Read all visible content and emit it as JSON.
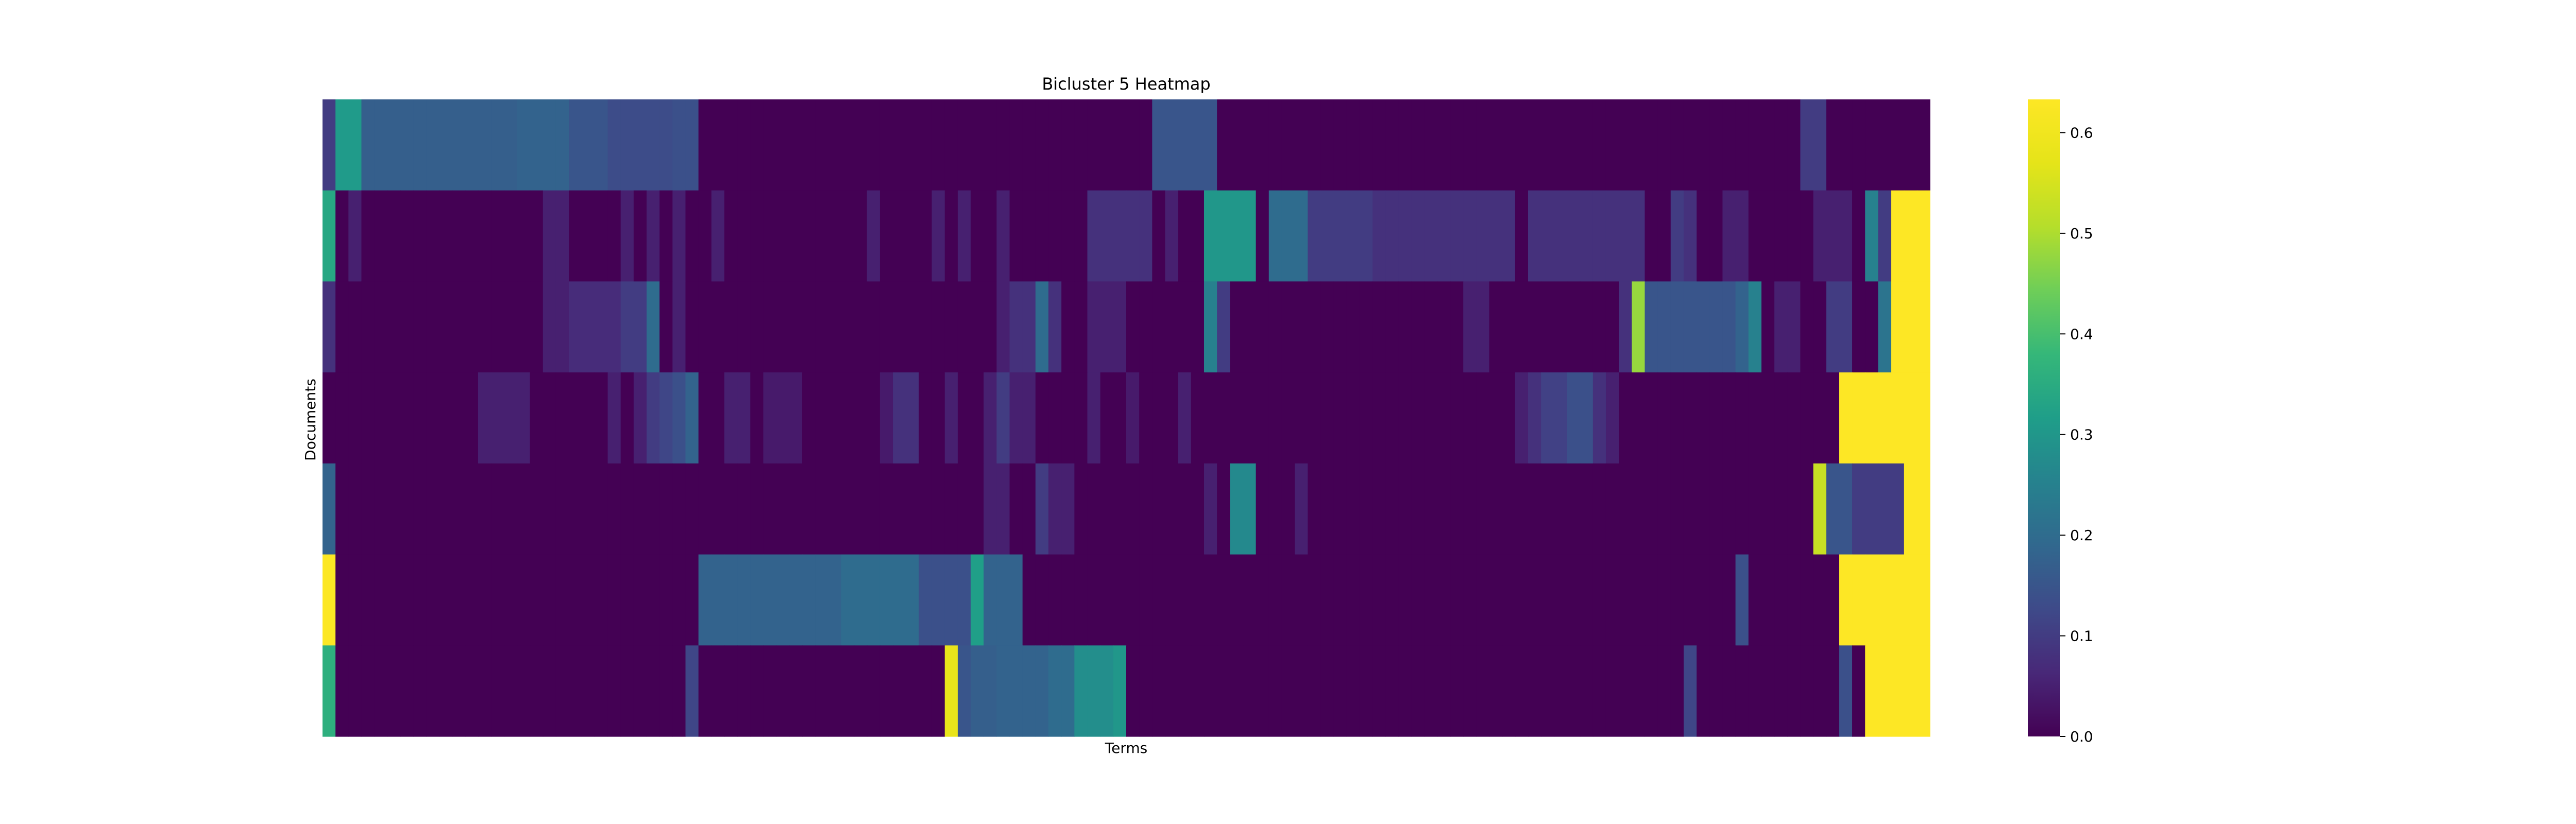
{
  "chart_data": {
    "type": "heatmap",
    "title": "Bicluster 5 Heatmap",
    "xlabel": "Terms",
    "ylabel": "Documents",
    "colormap": "viridis",
    "colorbar": {
      "min": 0.0,
      "max": 0.633,
      "ticks": [
        0.0,
        0.1,
        0.2,
        0.3,
        0.4,
        0.5,
        0.6
      ],
      "tick_labels": [
        "0.0",
        "0.1",
        "0.2",
        "0.3",
        "0.4",
        "0.5",
        "0.6"
      ]
    },
    "n_rows": 7,
    "n_cols": 117,
    "rows": [
      [
        0.1,
        0.31,
        0.31,
        0.17,
        0.17,
        0.17,
        0.17,
        0.17,
        0.17,
        0.17,
        0.17,
        0.17,
        0.17,
        0.17,
        0.17,
        0.18,
        0.18,
        0.18,
        0.18,
        0.15,
        0.15,
        0.15,
        0.13,
        0.13,
        0.13,
        0.13,
        0.13,
        0.14,
        0.14,
        0.0,
        0.0,
        0.0,
        0.0,
        0.0,
        0.0,
        0.0,
        0.0,
        0.0,
        0.0,
        0.0,
        0.0,
        0.0,
        0.0,
        0.0,
        0.0,
        0.0,
        0.0,
        0.0,
        0.0,
        0.0,
        0.0,
        0.0,
        0.0,
        0.0,
        0.0,
        0.0,
        0.0,
        0.0,
        0.0,
        0.0,
        0.0,
        0.0,
        0.0,
        0.0,
        0.15,
        0.15,
        0.15,
        0.15,
        0.15,
        0.0,
        0.0,
        0.0,
        0.0,
        0.0,
        0.0,
        0.0,
        0.0,
        0.0,
        0.0,
        0.0,
        0.0,
        0.0,
        0.0,
        0.0,
        0.0,
        0.0,
        0.0,
        0.0,
        0.0,
        0.0,
        0.0,
        0.0,
        0.0,
        0.0,
        0.0,
        0.0,
        0.0,
        0.0,
        0.0,
        0.0,
        0.0,
        0.0,
        0.0,
        0.0,
        0.0,
        0.0,
        0.0,
        0.0,
        0.0,
        0.0,
        0.0,
        0.0,
        0.0,
        0.0,
        0.1,
        0.1,
        0.0,
        0.0,
        0.0,
        0.0,
        0.0,
        0.0,
        0.0,
        0.0
      ],
      [
        0.34,
        0.0,
        0.05,
        0.0,
        0.0,
        0.0,
        0.0,
        0.0,
        0.0,
        0.0,
        0.0,
        0.0,
        0.0,
        0.0,
        0.0,
        0.0,
        0.0,
        0.05,
        0.05,
        0.0,
        0.0,
        0.0,
        0.0,
        0.05,
        0.0,
        0.05,
        0.0,
        0.05,
        0.0,
        0.0,
        0.05,
        0.0,
        0.0,
        0.0,
        0.0,
        0.0,
        0.0,
        0.0,
        0.0,
        0.0,
        0.0,
        0.0,
        0.05,
        0.0,
        0.0,
        0.0,
        0.0,
        0.05,
        0.0,
        0.05,
        0.0,
        0.0,
        0.05,
        0.0,
        0.0,
        0.0,
        0.0,
        0.0,
        0.0,
        0.08,
        0.08,
        0.08,
        0.08,
        0.08,
        0.0,
        0.05,
        0.0,
        0.0,
        0.3,
        0.3,
        0.3,
        0.3,
        0.0,
        0.2,
        0.2,
        0.2,
        0.1,
        0.1,
        0.1,
        0.1,
        0.1,
        0.08,
        0.08,
        0.08,
        0.08,
        0.08,
        0.08,
        0.08,
        0.08,
        0.08,
        0.08,
        0.08,
        0.0,
        0.08,
        0.08,
        0.08,
        0.08,
        0.08,
        0.08,
        0.08,
        0.08,
        0.08,
        0.0,
        0.0,
        0.1,
        0.08,
        0.0,
        0.0,
        0.05,
        0.05,
        0.0,
        0.0,
        0.0,
        0.0,
        0.0,
        0.05,
        0.05,
        0.05,
        0.0,
        0.25,
        0.1
      ],
      [
        0.08,
        0.0,
        0.0,
        0.0,
        0.0,
        0.0,
        0.0,
        0.0,
        0.0,
        0.0,
        0.0,
        0.0,
        0.0,
        0.0,
        0.0,
        0.0,
        0.0,
        0.05,
        0.05,
        0.07,
        0.07,
        0.07,
        0.07,
        0.1,
        0.1,
        0.2,
        0.0,
        0.05,
        0.0,
        0.0,
        0.0,
        0.0,
        0.0,
        0.0,
        0.0,
        0.0,
        0.0,
        0.0,
        0.0,
        0.0,
        0.0,
        0.0,
        0.0,
        0.0,
        0.0,
        0.0,
        0.0,
        0.0,
        0.0,
        0.0,
        0.0,
        0.0,
        0.05,
        0.08,
        0.08,
        0.2,
        0.08,
        0.0,
        0.0,
        0.05,
        0.05,
        0.05,
        0.0,
        0.0,
        0.0,
        0.0,
        0.0,
        0.0,
        0.25,
        0.1,
        0.0,
        0.0,
        0.0,
        0.0,
        0.0,
        0.0,
        0.0,
        0.0,
        0.0,
        0.0,
        0.0,
        0.0,
        0.0,
        0.0,
        0.0,
        0.0,
        0.0,
        0.0,
        0.05,
        0.05,
        0.0,
        0.0,
        0.0,
        0.0,
        0.0,
        0.0,
        0.0,
        0.0,
        0.0,
        0.0,
        0.08,
        0.48,
        0.15,
        0.15,
        0.15,
        0.15,
        0.15,
        0.15,
        0.15,
        0.18,
        0.25,
        0.0,
        0.05,
        0.05,
        0.0,
        0.0,
        0.1,
        0.1,
        0.0,
        0.0,
        0.22
      ],
      [
        0.0,
        0.0,
        0.0,
        0.0,
        0.0,
        0.0,
        0.0,
        0.0,
        0.0,
        0.0,
        0.0,
        0.0,
        0.05,
        0.05,
        0.05,
        0.05,
        0.0,
        0.0,
        0.0,
        0.0,
        0.0,
        0.0,
        0.05,
        0.0,
        0.05,
        0.1,
        0.12,
        0.14,
        0.18,
        0.0,
        0.0,
        0.05,
        0.05,
        0.0,
        0.04,
        0.04,
        0.04,
        0.0,
        0.0,
        0.0,
        0.0,
        0.0,
        0.0,
        0.04,
        0.08,
        0.08,
        0.0,
        0.0,
        0.05,
        0.0,
        0.0,
        0.05,
        0.1,
        0.05,
        0.05,
        0.0,
        0.0,
        0.0,
        0.0,
        0.05,
        0.0,
        0.0,
        0.04,
        0.0,
        0.0,
        0.0,
        0.05,
        0.0,
        0.0,
        0.0,
        0.0,
        0.0,
        0.0,
        0.0,
        0.0,
        0.0,
        0.0,
        0.0,
        0.0,
        0.0,
        0.0,
        0.0,
        0.0,
        0.0,
        0.0,
        0.0,
        0.0,
        0.0,
        0.0,
        0.0,
        0.0,
        0.0,
        0.05,
        0.08,
        0.11,
        0.11,
        0.14,
        0.14,
        0.08,
        0.05,
        0.0,
        0.0,
        0.0,
        0.0,
        0.0,
        0.0,
        0.0,
        0.0,
        0.0,
        0.0,
        0.0,
        0.0,
        0.0,
        0.0,
        0.0,
        0.0,
        0.0
      ],
      [
        0.18,
        0.0,
        0.0,
        0.0,
        0.0,
        0.0,
        0.0,
        0.0,
        0.0,
        0.0,
        0.0,
        0.0,
        0.0,
        0.0,
        0.0,
        0.0,
        0.0,
        0.0,
        0.0,
        0.0,
        0.0,
        0.0,
        0.0,
        0.0,
        0.0,
        0.0,
        0.0,
        0.0,
        0.0,
        0.0,
        0.0,
        0.0,
        0.0,
        0.0,
        0.0,
        0.0,
        0.0,
        0.0,
        0.0,
        0.0,
        0.0,
        0.0,
        0.0,
        0.0,
        0.0,
        0.0,
        0.0,
        0.0,
        0.0,
        0.0,
        0.0,
        0.05,
        0.05,
        0.0,
        0.0,
        0.1,
        0.05,
        0.05,
        0.0,
        0.0,
        0.0,
        0.0,
        0.0,
        0.0,
        0.0,
        0.0,
        0.0,
        0.0,
        0.05,
        0.0,
        0.27,
        0.27,
        0.0,
        0.0,
        0.0,
        0.05,
        0.0,
        0.0,
        0.0,
        0.0,
        0.0,
        0.0,
        0.0,
        0.0,
        0.0,
        0.0,
        0.0,
        0.0,
        0.0,
        0.0,
        0.0,
        0.0,
        0.0,
        0.0,
        0.0,
        0.0,
        0.0,
        0.0,
        0.0,
        0.0,
        0.0,
        0.0,
        0.0,
        0.0,
        0.0,
        0.0,
        0.0,
        0.0,
        0.0,
        0.0,
        0.0,
        0.0,
        0.0,
        0.0,
        0.0,
        0.53,
        0.15,
        0.15,
        0.1,
        0.1,
        0.1,
        0.1
      ],
      [
        0.63,
        0.0,
        0.0,
        0.0,
        0.0,
        0.0,
        0.0,
        0.0,
        0.0,
        0.0,
        0.0,
        0.0,
        0.0,
        0.0,
        0.0,
        0.0,
        0.0,
        0.0,
        0.0,
        0.0,
        0.0,
        0.0,
        0.0,
        0.0,
        0.0,
        0.0,
        0.0,
        0.0,
        0.0,
        0.18,
        0.18,
        0.18,
        0.18,
        0.18,
        0.18,
        0.18,
        0.18,
        0.18,
        0.18,
        0.18,
        0.2,
        0.2,
        0.2,
        0.2,
        0.2,
        0.2,
        0.14,
        0.14,
        0.14,
        0.14,
        0.32,
        0.18,
        0.18,
        0.18,
        0.0,
        0.0,
        0.0,
        0.0,
        0.0,
        0.0,
        0.0,
        0.0,
        0.0,
        0.0,
        0.0,
        0.0,
        0.0,
        0.0,
        0.0,
        0.0,
        0.0,
        0.0,
        0.0,
        0.0,
        0.0,
        0.0,
        0.0,
        0.0,
        0.0,
        0.0,
        0.0,
        0.0,
        0.0,
        0.0,
        0.0,
        0.0,
        0.0,
        0.0,
        0.0,
        0.0,
        0.0,
        0.0,
        0.0,
        0.0,
        0.0,
        0.0,
        0.0,
        0.0,
        0.0,
        0.0,
        0.0,
        0.0,
        0.0,
        0.0,
        0.0,
        0.0,
        0.0,
        0.0,
        0.0,
        0.14,
        0.0,
        0.0,
        0.0,
        0.0,
        0.0,
        0.0,
        0.0
      ],
      [
        0.36,
        0.0,
        0.0,
        0.0,
        0.0,
        0.0,
        0.0,
        0.0,
        0.0,
        0.0,
        0.0,
        0.0,
        0.0,
        0.0,
        0.0,
        0.0,
        0.0,
        0.0,
        0.0,
        0.0,
        0.0,
        0.0,
        0.0,
        0.0,
        0.0,
        0.0,
        0.0,
        0.0,
        0.12,
        0.0,
        0.0,
        0.0,
        0.0,
        0.0,
        0.0,
        0.0,
        0.0,
        0.0,
        0.0,
        0.0,
        0.0,
        0.0,
        0.0,
        0.0,
        0.0,
        0.0,
        0.0,
        0.0,
        0.58,
        0.15,
        0.17,
        0.17,
        0.18,
        0.18,
        0.18,
        0.18,
        0.2,
        0.2,
        0.28,
        0.28,
        0.28,
        0.3,
        0.0,
        0.0,
        0.0,
        0.0,
        0.0,
        0.0,
        0.0,
        0.0,
        0.0,
        0.0,
        0.0,
        0.0,
        0.0,
        0.0,
        0.0,
        0.0,
        0.0,
        0.0,
        0.0,
        0.0,
        0.0,
        0.0,
        0.0,
        0.0,
        0.0,
        0.0,
        0.0,
        0.0,
        0.0,
        0.0,
        0.0,
        0.0,
        0.0,
        0.0,
        0.0,
        0.0,
        0.0,
        0.0,
        0.0,
        0.0,
        0.0,
        0.0,
        0.0,
        0.12,
        0.0,
        0.0,
        0.0,
        0.0,
        0.0,
        0.0,
        0.0,
        0.0,
        0.0,
        0.0,
        0.0,
        0.14,
        0.0
      ]
    ]
  }
}
